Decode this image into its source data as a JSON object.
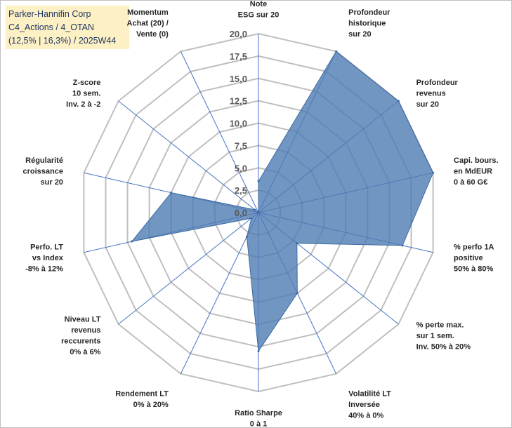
{
  "title": {
    "line1": "Parker-Hannifin Corp",
    "line2": "C4_Actions / 4_OTAN",
    "line3": "(12,5% | 16,3%) / 2025W44"
  },
  "chart_data": {
    "type": "radar",
    "rmin": 0,
    "rmax": 20,
    "tick_step": 2.5,
    "tick_labels": [
      "0,0",
      "2,5",
      "5,0",
      "7,5",
      "10,0",
      "12,5",
      "15,0",
      "17,5",
      "20,0"
    ],
    "categories": [
      [
        "Note",
        "ESG sur 20"
      ],
      [
        "Profondeur",
        "historique",
        "sur 20"
      ],
      [
        "Profondeur",
        "revenus",
        "sur 20"
      ],
      [
        "Capi. bours.",
        "en MdEUR",
        "0 à 60 G€"
      ],
      [
        "% perfo 1A",
        "positive",
        "50% à 80%"
      ],
      [
        "% perte max.",
        "sur 1 sem.",
        "Inv. 50% à 20%"
      ],
      [
        "Volatilité LT",
        "Inversée",
        "40% à 0%"
      ],
      [
        "Ratio Sharpe",
        "0 à 1"
      ],
      [
        "Rendement LT",
        "0% à 20%"
      ],
      [
        "Niveau LT",
        "revenus",
        "reccurents",
        "0% à 6%"
      ],
      [
        "Perfo. LT",
        "vs Index",
        "-8% à 12%"
      ],
      [
        "Régularité",
        "croissance",
        "sur 20"
      ],
      [
        "Z-score",
        "10 sem.",
        "Inv. 2 à -2"
      ],
      [
        "Momentum",
        "Achat (20) /",
        "Vente (0)"
      ]
    ],
    "series": [
      {
        "name": "Parker-Hannifin Corp",
        "values": [
          3.5,
          20,
          20,
          20,
          16.5,
          5.5,
          10,
          15.5,
          3.0,
          1.0,
          14.5,
          10,
          0.5,
          0
        ]
      }
    ],
    "colors": {
      "fill": "#4f7cb3",
      "stroke": "#3d6aa4",
      "grid": "#bfbfbf",
      "axis": "#4472c4"
    }
  }
}
